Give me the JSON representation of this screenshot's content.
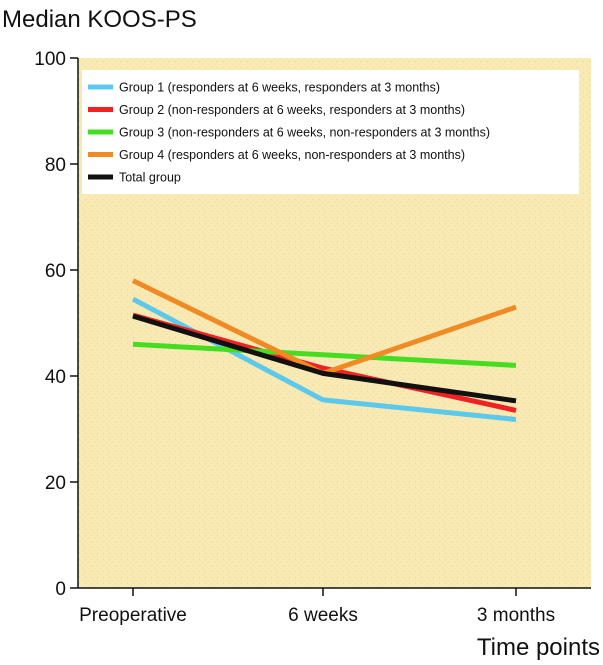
{
  "chart_data": {
    "type": "line",
    "title": "",
    "ylabel": "Median KOOS-PS",
    "xlabel": "Time points",
    "categories": [
      "Preoperative",
      "6 weeks",
      "3 months"
    ],
    "ylim": [
      0,
      100
    ],
    "yticks": [
      0,
      20,
      40,
      60,
      80,
      100
    ],
    "grid": false,
    "legend_position": "top",
    "plot_background": "#f9e9b3",
    "series": [
      {
        "name": "Group 1 (responders at 6 weeks, responders at 3 months)",
        "color": "#5bc8ec",
        "values": [
          54.5,
          35.5,
          31.8
        ]
      },
      {
        "name": "Group 2 (non-responders at 6 weeks, responders at 3 months)",
        "color": "#ee2222",
        "values": [
          51.5,
          41.5,
          33.5
        ]
      },
      {
        "name": "Group 3 (non-responders at 6 weeks, non-responders at 3 months)",
        "color": "#44dd22",
        "values": [
          46,
          44,
          42
        ]
      },
      {
        "name": "Group 4 (responders at 6 weeks, non-responders at 3 months)",
        "color": "#f08a24",
        "values": [
          58,
          40.5,
          53
        ]
      },
      {
        "name": "Total group",
        "color": "#111111",
        "values": [
          51.3,
          40.5,
          35.3
        ]
      }
    ]
  }
}
